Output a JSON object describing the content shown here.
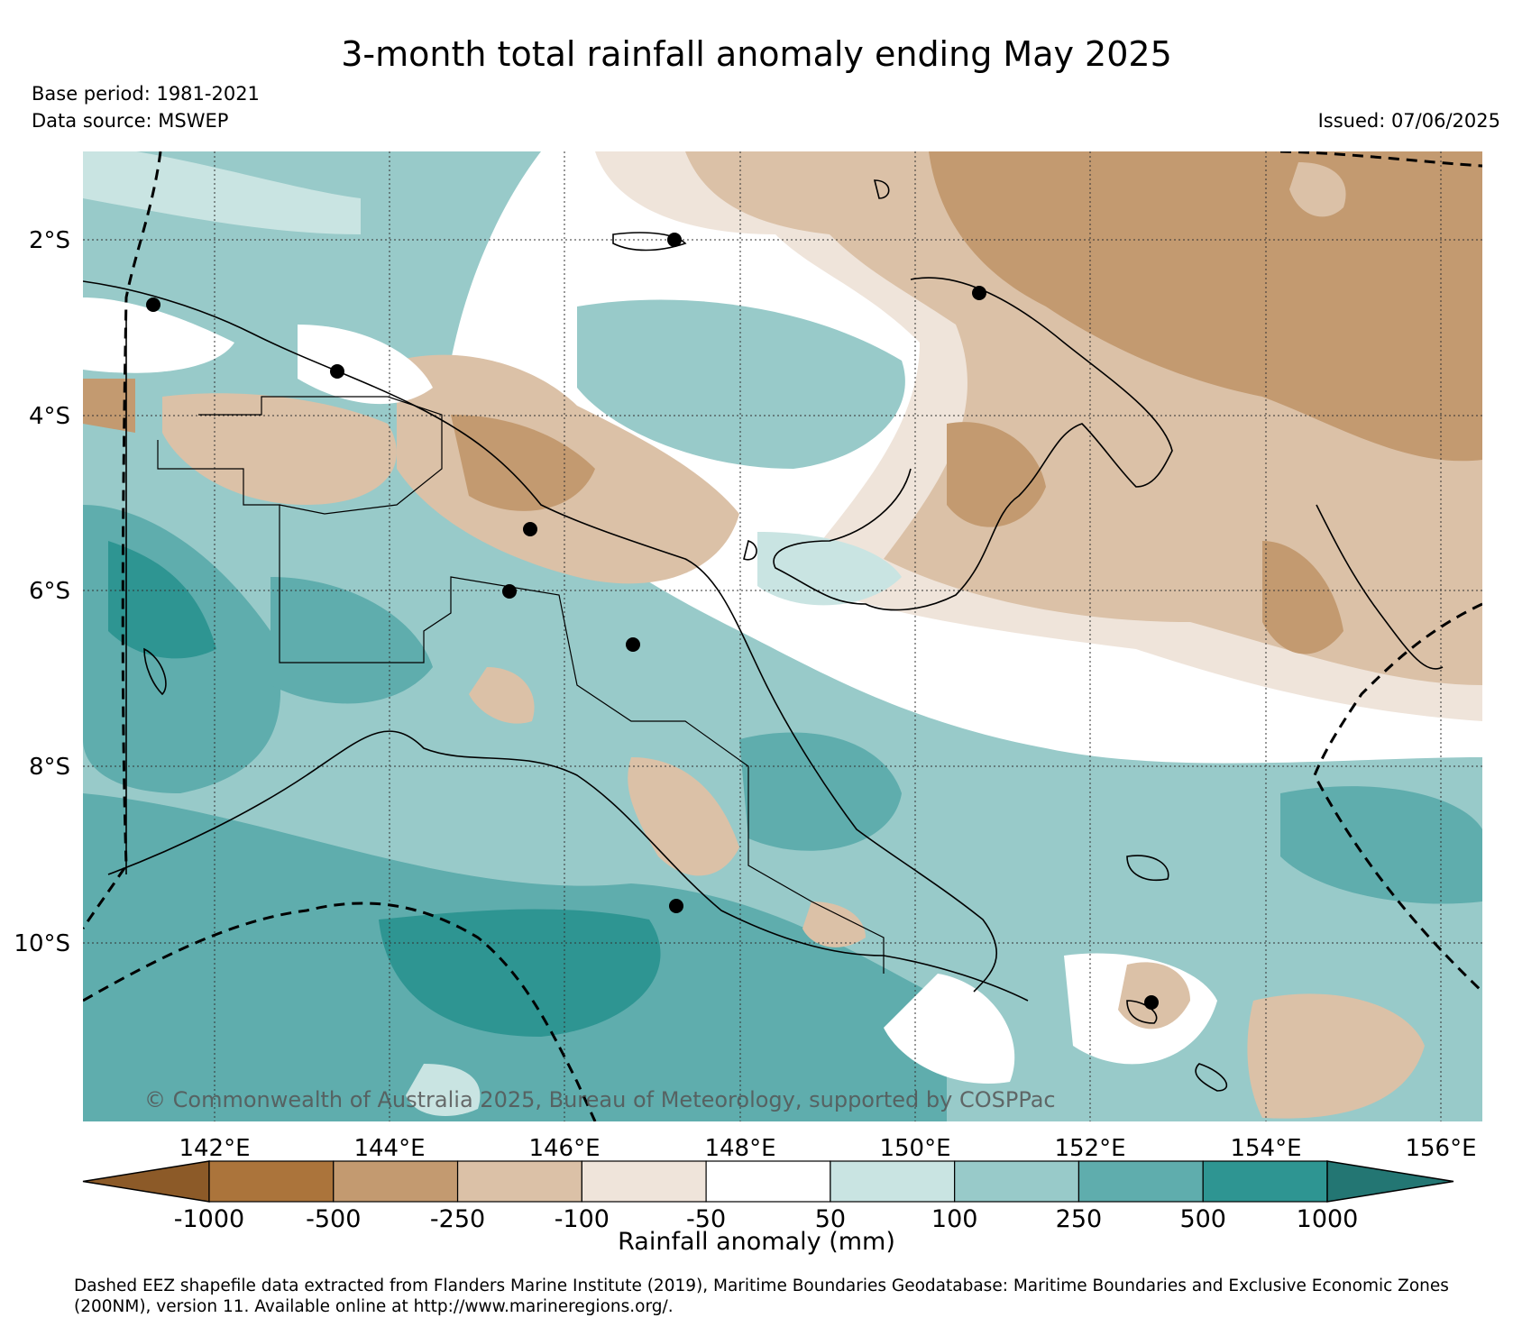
{
  "title": "3-month total rainfall anomaly ending May 2025",
  "base_period": "Base period: 1981-2021",
  "data_source": "Data source: MSWEP",
  "issued": "Issued: 07/06/2025",
  "copyright": "© Commonwealth of Australia 2025, Bureau of Meteorology, supported by COSPPac",
  "lat_labels": [
    "2°S",
    "4°S",
    "6°S",
    "8°S",
    "10°S"
  ],
  "lon_labels": [
    "142°E",
    "144°E",
    "146°E",
    "148°E",
    "150°E",
    "152°E",
    "154°E",
    "156°E"
  ],
  "colorbar": {
    "title": "Rainfall anomaly (mm)",
    "ticks": [
      "-1000",
      "-500",
      "-250",
      "-100",
      "-50",
      "50",
      "100",
      "250",
      "500",
      "1000"
    ],
    "colors": [
      "#8c5a28",
      "#ab743b",
      "#c39a70",
      "#dbc1a7",
      "#efe4da",
      "#ffffff",
      "#c9e4e2",
      "#98cac9",
      "#5fadad",
      "#2e9592",
      "#237673"
    ]
  },
  "footer": "Dashed EEZ shapefile data extracted from Flanders Marine Institute (2019), Maritime Boundaries Geodatabase: Maritime Boundaries and Exclusive Economic Zones (200NM), version 11. Available online at http://www.marineregions.org/."
}
